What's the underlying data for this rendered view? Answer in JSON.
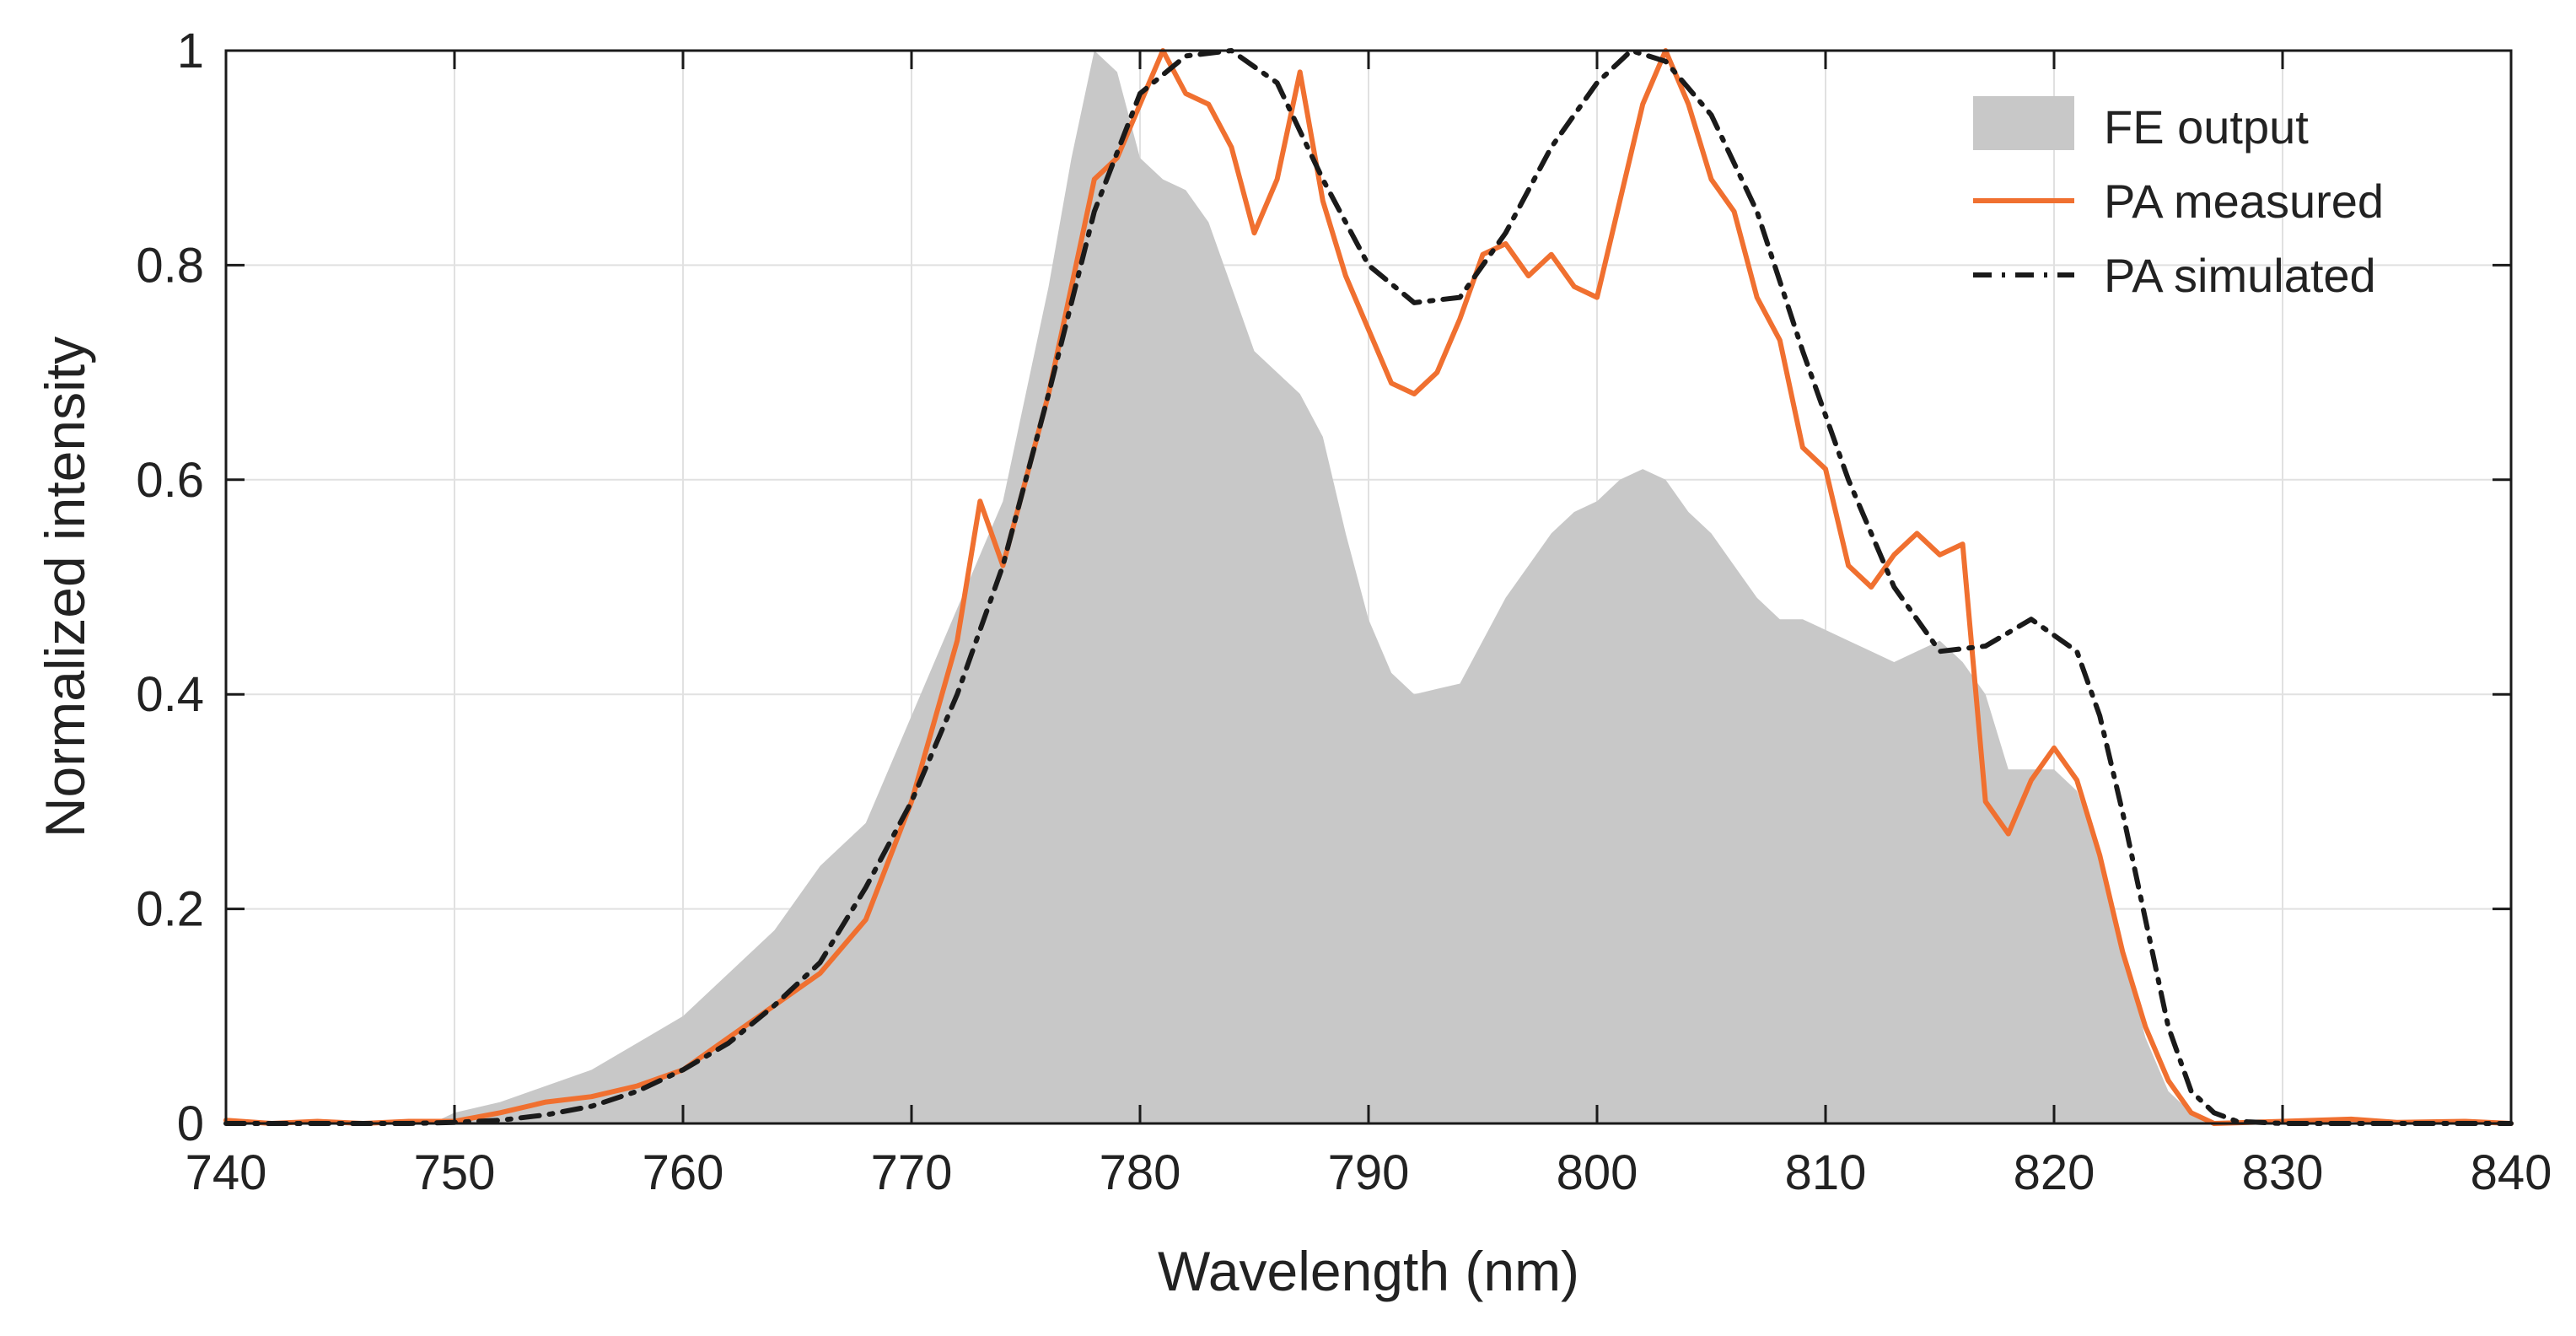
{
  "chart_data": {
    "type": "area",
    "xlabel": "Wavelength (nm)",
    "ylabel": "Normalized intensity",
    "xlim": [
      740,
      840
    ],
    "ylim": [
      0,
      1
    ],
    "x_ticks": [
      740,
      750,
      760,
      770,
      780,
      790,
      800,
      810,
      820,
      830,
      840
    ],
    "y_ticks": [
      0,
      0.2,
      0.4,
      0.6,
      0.8,
      1
    ],
    "x_tick_labels": [
      "740",
      "750",
      "760",
      "770",
      "780",
      "790",
      "800",
      "810",
      "820",
      "830",
      "840"
    ],
    "y_tick_labels": [
      "0",
      "0.2",
      "0.4",
      "0.6",
      "0.8",
      "1"
    ],
    "grid": true,
    "legend_position": "top-right",
    "series": [
      {
        "name": "FE output",
        "style": "filled-area",
        "color": "#c8c8c8",
        "points": [
          [
            740,
            0
          ],
          [
            749,
            0
          ],
          [
            750,
            0.01
          ],
          [
            752,
            0.02
          ],
          [
            754,
            0.035
          ],
          [
            756,
            0.05
          ],
          [
            758,
            0.075
          ],
          [
            760,
            0.1
          ],
          [
            762,
            0.14
          ],
          [
            764,
            0.18
          ],
          [
            766,
            0.24
          ],
          [
            768,
            0.28
          ],
          [
            770,
            0.38
          ],
          [
            772,
            0.48
          ],
          [
            774,
            0.58
          ],
          [
            775,
            0.68
          ],
          [
            776,
            0.78
          ],
          [
            777,
            0.9
          ],
          [
            778,
            1.0
          ],
          [
            779,
            0.98
          ],
          [
            780,
            0.9
          ],
          [
            781,
            0.88
          ],
          [
            782,
            0.87
          ],
          [
            783,
            0.84
          ],
          [
            784,
            0.78
          ],
          [
            785,
            0.72
          ],
          [
            786,
            0.7
          ],
          [
            787,
            0.68
          ],
          [
            788,
            0.64
          ],
          [
            789,
            0.55
          ],
          [
            790,
            0.47
          ],
          [
            791,
            0.42
          ],
          [
            792,
            0.4
          ],
          [
            793,
            0.405
          ],
          [
            794,
            0.41
          ],
          [
            795,
            0.45
          ],
          [
            796,
            0.49
          ],
          [
            797,
            0.52
          ],
          [
            798,
            0.55
          ],
          [
            799,
            0.57
          ],
          [
            800,
            0.58
          ],
          [
            801,
            0.6
          ],
          [
            802,
            0.61
          ],
          [
            803,
            0.6
          ],
          [
            804,
            0.57
          ],
          [
            805,
            0.55
          ],
          [
            806,
            0.52
          ],
          [
            807,
            0.49
          ],
          [
            808,
            0.47
          ],
          [
            809,
            0.47
          ],
          [
            810,
            0.46
          ],
          [
            811,
            0.45
          ],
          [
            812,
            0.44
          ],
          [
            813,
            0.43
          ],
          [
            814,
            0.44
          ],
          [
            815,
            0.45
          ],
          [
            816,
            0.43
          ],
          [
            817,
            0.4
          ],
          [
            818,
            0.33
          ],
          [
            819,
            0.33
          ],
          [
            820,
            0.33
          ],
          [
            821,
            0.31
          ],
          [
            822,
            0.25
          ],
          [
            823,
            0.16
          ],
          [
            824,
            0.08
          ],
          [
            825,
            0.03
          ],
          [
            826,
            0.01
          ],
          [
            827,
            0
          ],
          [
            840,
            0
          ]
        ]
      },
      {
        "name": "PA measured",
        "style": "solid-line",
        "color": "#f07030",
        "points": [
          [
            740,
            0.003
          ],
          [
            742,
            0
          ],
          [
            744,
            0.002
          ],
          [
            746,
            0
          ],
          [
            748,
            0.002
          ],
          [
            750,
            0.002
          ],
          [
            752,
            0.01
          ],
          [
            754,
            0.02
          ],
          [
            756,
            0.025
          ],
          [
            758,
            0.035
          ],
          [
            760,
            0.05
          ],
          [
            762,
            0.08
          ],
          [
            764,
            0.11
          ],
          [
            766,
            0.14
          ],
          [
            768,
            0.19
          ],
          [
            770,
            0.3
          ],
          [
            772,
            0.45
          ],
          [
            773,
            0.58
          ],
          [
            774,
            0.52
          ],
          [
            775,
            0.6
          ],
          [
            776,
            0.68
          ],
          [
            777,
            0.78
          ],
          [
            778,
            0.88
          ],
          [
            779,
            0.9
          ],
          [
            780,
            0.95
          ],
          [
            781,
            1.0
          ],
          [
            782,
            0.96
          ],
          [
            783,
            0.95
          ],
          [
            784,
            0.91
          ],
          [
            785,
            0.83
          ],
          [
            786,
            0.88
          ],
          [
            787,
            0.98
          ],
          [
            788,
            0.86
          ],
          [
            789,
            0.79
          ],
          [
            790,
            0.74
          ],
          [
            791,
            0.69
          ],
          [
            792,
            0.68
          ],
          [
            793,
            0.7
          ],
          [
            794,
            0.75
          ],
          [
            795,
            0.81
          ],
          [
            796,
            0.82
          ],
          [
            797,
            0.79
          ],
          [
            798,
            0.81
          ],
          [
            799,
            0.78
          ],
          [
            800,
            0.77
          ],
          [
            801,
            0.86
          ],
          [
            802,
            0.95
          ],
          [
            803,
            1.0
          ],
          [
            804,
            0.95
          ],
          [
            805,
            0.88
          ],
          [
            806,
            0.85
          ],
          [
            807,
            0.77
          ],
          [
            808,
            0.73
          ],
          [
            809,
            0.63
          ],
          [
            810,
            0.61
          ],
          [
            811,
            0.52
          ],
          [
            812,
            0.5
          ],
          [
            813,
            0.53
          ],
          [
            814,
            0.55
          ],
          [
            815,
            0.53
          ],
          [
            816,
            0.54
          ],
          [
            817,
            0.3
          ],
          [
            818,
            0.27
          ],
          [
            819,
            0.32
          ],
          [
            820,
            0.35
          ],
          [
            821,
            0.32
          ],
          [
            822,
            0.25
          ],
          [
            823,
            0.16
          ],
          [
            824,
            0.09
          ],
          [
            825,
            0.04
          ],
          [
            826,
            0.01
          ],
          [
            827,
            0
          ],
          [
            830,
            0.002
          ],
          [
            833,
            0.004
          ],
          [
            835,
            0.001
          ],
          [
            838,
            0.002
          ],
          [
            840,
            0
          ]
        ]
      },
      {
        "name": "PA simulated",
        "style": "dash-dot-line",
        "color": "#1a1a1a",
        "points": [
          [
            740,
            0
          ],
          [
            748,
            0
          ],
          [
            750,
            0.001
          ],
          [
            752,
            0.003
          ],
          [
            754,
            0.008
          ],
          [
            756,
            0.016
          ],
          [
            758,
            0.03
          ],
          [
            760,
            0.05
          ],
          [
            762,
            0.075
          ],
          [
            764,
            0.11
          ],
          [
            766,
            0.15
          ],
          [
            768,
            0.22
          ],
          [
            770,
            0.3
          ],
          [
            772,
            0.4
          ],
          [
            774,
            0.52
          ],
          [
            776,
            0.68
          ],
          [
            778,
            0.85
          ],
          [
            780,
            0.96
          ],
          [
            782,
            0.995
          ],
          [
            784,
            1.0
          ],
          [
            786,
            0.97
          ],
          [
            788,
            0.88
          ],
          [
            790,
            0.8
          ],
          [
            792,
            0.765
          ],
          [
            794,
            0.77
          ],
          [
            796,
            0.83
          ],
          [
            798,
            0.91
          ],
          [
            800,
            0.97
          ],
          [
            801.5,
            1.0
          ],
          [
            803,
            0.99
          ],
          [
            805,
            0.94
          ],
          [
            807,
            0.85
          ],
          [
            809,
            0.72
          ],
          [
            811,
            0.6
          ],
          [
            813,
            0.5
          ],
          [
            815,
            0.44
          ],
          [
            817,
            0.445
          ],
          [
            819,
            0.47
          ],
          [
            821,
            0.44
          ],
          [
            822,
            0.38
          ],
          [
            823,
            0.29
          ],
          [
            824,
            0.19
          ],
          [
            825,
            0.09
          ],
          [
            826,
            0.03
          ],
          [
            827,
            0.01
          ],
          [
            828,
            0.002
          ],
          [
            830,
            0
          ],
          [
            840,
            0
          ]
        ]
      }
    ]
  }
}
